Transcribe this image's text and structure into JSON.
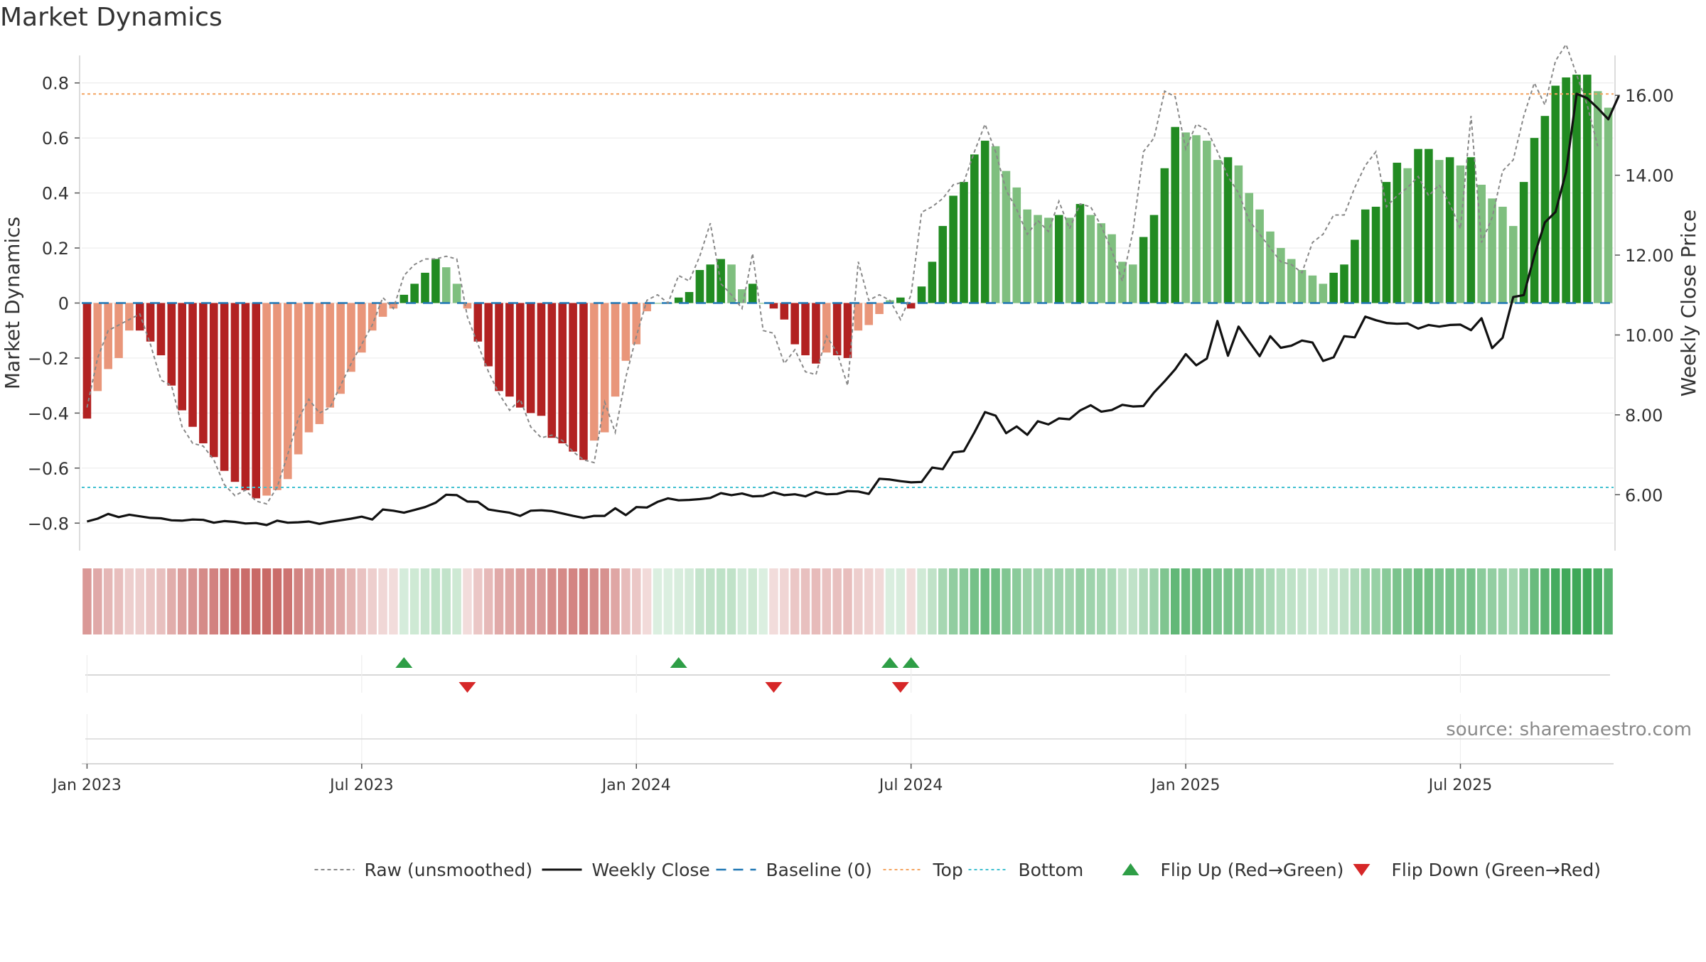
{
  "chart_data": {
    "title": "Market Dynamics",
    "type": "bar",
    "ylabel_left": "Market Dynamics",
    "ylabel_right": "Weekly Close Price",
    "ylim_left": [
      -0.9,
      0.9
    ],
    "ylim_right": [
      4.6,
      17.0
    ],
    "left_ticks": [
      -0.8,
      -0.6,
      -0.4,
      -0.2,
      0,
      0.2,
      0.4,
      0.6,
      0.8
    ],
    "left_tick_labels": [
      "−0.8",
      "−0.6",
      "−0.4",
      "−0.2",
      "0",
      "0.2",
      "0.4",
      "0.6",
      "0.8"
    ],
    "right_ticks": [
      6,
      8,
      10,
      12,
      14,
      16
    ],
    "right_tick_labels": [
      "6.00",
      "8.00",
      "10.00",
      "12.00",
      "14.00",
      "16.00"
    ],
    "x_tick_labels": [
      "Jan 2023",
      "Jul 2023",
      "Jan 2024",
      "Jul 2024",
      "Jan 2025",
      "Jul 2025"
    ],
    "x_tick_weeks": [
      1,
      27,
      53,
      79,
      105,
      131
    ],
    "top_level": 0.76,
    "bottom_level": -0.67,
    "baseline": 0,
    "bar_values": [
      -0.42,
      -0.32,
      -0.24,
      -0.2,
      -0.1,
      -0.1,
      -0.14,
      -0.19,
      -0.3,
      -0.39,
      -0.45,
      -0.51,
      -0.56,
      -0.61,
      -0.65,
      -0.68,
      -0.71,
      -0.7,
      -0.68,
      -0.64,
      -0.55,
      -0.47,
      -0.44,
      -0.38,
      -0.33,
      -0.25,
      -0.18,
      -0.1,
      -0.05,
      -0.02,
      0.03,
      0.07,
      0.11,
      0.16,
      0.13,
      0.07,
      -0.02,
      -0.14,
      -0.23,
      -0.32,
      -0.34,
      -0.38,
      -0.4,
      -0.41,
      -0.49,
      -0.51,
      -0.54,
      -0.57,
      -0.5,
      -0.47,
      -0.34,
      -0.21,
      -0.15,
      -0.03,
      0,
      0,
      0.02,
      0.04,
      0.12,
      0.14,
      0.16,
      0.14,
      0.05,
      0.07,
      0,
      -0.02,
      -0.06,
      -0.15,
      -0.19,
      -0.22,
      -0.18,
      -0.19,
      -0.2,
      -0.1,
      -0.08,
      -0.04,
      0.01,
      0.02,
      -0.02,
      0.06,
      0.15,
      0.28,
      0.39,
      0.44,
      0.54,
      0.59,
      0.57,
      0.48,
      0.42,
      0.34,
      0.32,
      0.31,
      0.32,
      0.31,
      0.36,
      0.32,
      0.29,
      0.25,
      0.15,
      0.14,
      0.24,
      0.32,
      0.49,
      0.64,
      0.62,
      0.61,
      0.59,
      0.52,
      0.53,
      0.5,
      0.4,
      0.34,
      0.26,
      0.2,
      0.16,
      0.12,
      0.1,
      0.07,
      0.11,
      0.14,
      0.23,
      0.34,
      0.35,
      0.44,
      0.51,
      0.49,
      0.56,
      0.56,
      0.52,
      0.53,
      0.5,
      0.53,
      0.43,
      0.38,
      0.35,
      0.28,
      0.44,
      0.6,
      0.68,
      0.79,
      0.82,
      0.83,
      0.83,
      0.77,
      0.71
    ],
    "raw_values": [
      -0.38,
      -0.2,
      -0.1,
      -0.08,
      -0.06,
      -0.04,
      -0.15,
      -0.28,
      -0.3,
      -0.45,
      -0.51,
      -0.52,
      -0.57,
      -0.66,
      -0.7,
      -0.68,
      -0.72,
      -0.73,
      -0.67,
      -0.55,
      -0.42,
      -0.35,
      -0.4,
      -0.38,
      -0.3,
      -0.22,
      -0.15,
      -0.08,
      0.02,
      -0.02,
      0.1,
      0.14,
      0.16,
      0.16,
      0.17,
      0.16,
      -0.05,
      -0.15,
      -0.25,
      -0.33,
      -0.39,
      -0.35,
      -0.45,
      -0.49,
      -0.48,
      -0.5,
      -0.54,
      -0.57,
      -0.58,
      -0.36,
      -0.47,
      -0.27,
      -0.12,
      0.01,
      0.03,
      0,
      0.1,
      0.08,
      0.17,
      0.29,
      0.07,
      0.03,
      -0.02,
      0.18,
      -0.1,
      -0.11,
      -0.22,
      -0.17,
      -0.25,
      -0.26,
      -0.12,
      -0.18,
      -0.3,
      0.15,
      0.01,
      0.03,
      0.01,
      -0.06,
      0.03,
      0.33,
      0.35,
      0.38,
      0.43,
      0.44,
      0.55,
      0.65,
      0.55,
      0.41,
      0.34,
      0.25,
      0.3,
      0.26,
      0.37,
      0.27,
      0.36,
      0.35,
      0.28,
      0.19,
      0.08,
      0.26,
      0.55,
      0.6,
      0.77,
      0.75,
      0.56,
      0.65,
      0.63,
      0.55,
      0.46,
      0.4,
      0.3,
      0.25,
      0.2,
      0.15,
      0.14,
      0.11,
      0.22,
      0.25,
      0.32,
      0.32,
      0.42,
      0.5,
      0.55,
      0.35,
      0.39,
      0.42,
      0.46,
      0.39,
      0.43,
      0.36,
      0.27,
      0.68,
      0.22,
      0.31,
      0.48,
      0.52,
      0.68,
      0.8,
      0.72,
      0.88,
      0.94,
      0.83,
      0.72,
      0.57
    ],
    "close_values": [
      5.33,
      5.4,
      5.52,
      5.44,
      5.5,
      5.46,
      5.42,
      5.41,
      5.36,
      5.35,
      5.38,
      5.37,
      5.3,
      5.34,
      5.32,
      5.28,
      5.29,
      5.24,
      5.35,
      5.3,
      5.31,
      5.33,
      5.27,
      5.32,
      5.36,
      5.4,
      5.45,
      5.38,
      5.63,
      5.6,
      5.55,
      5.62,
      5.69,
      5.8,
      6.0,
      5.99,
      5.83,
      5.82,
      5.63,
      5.59,
      5.55,
      5.47,
      5.6,
      5.61,
      5.59,
      5.53,
      5.47,
      5.42,
      5.47,
      5.47,
      5.66,
      5.49,
      5.69,
      5.68,
      5.82,
      5.91,
      5.86,
      5.87,
      5.89,
      5.92,
      6.04,
      5.99,
      6.03,
      5.96,
      5.97,
      6.06,
      5.99,
      6.01,
      5.96,
      6.07,
      6.01,
      6.02,
      6.09,
      6.08,
      6.02,
      6.4,
      6.38,
      6.34,
      6.31,
      6.32,
      6.68,
      6.64,
      7.06,
      7.09,
      7.56,
      8.07,
      7.98,
      7.54,
      7.71,
      7.5,
      7.84,
      7.76,
      7.91,
      7.89,
      8.11,
      8.24,
      8.08,
      8.12,
      8.25,
      8.21,
      8.22,
      8.56,
      8.84,
      9.14,
      9.52,
      9.24,
      9.41,
      10.35,
      9.48,
      10.21,
      9.83,
      9.47,
      9.97,
      9.68,
      9.73,
      9.86,
      9.81,
      9.35,
      9.44,
      9.97,
      9.94,
      10.46,
      10.37,
      10.3,
      10.28,
      10.29,
      10.16,
      10.25,
      10.21,
      10.25,
      10.26,
      10.12,
      10.42,
      9.67,
      9.93,
      10.95,
      11.0,
      11.99,
      12.82,
      13.08,
      14.08,
      16.04,
      15.93,
      15.68,
      15.4,
      15.99
    ]
  },
  "flip_up_weeks": [
    31,
    57,
    77,
    79
  ],
  "flip_down_weeks": [
    37,
    66,
    78
  ],
  "colors": {
    "dark_red": "#b22222",
    "light_red": "#e9967a",
    "dark_green": "#228b22",
    "light_green": "#7fbf7f",
    "raw": "#888888",
    "close": "#111111",
    "baseline": "#1f77b4",
    "top": "#f4a460",
    "bottom": "#40c0d0",
    "flip_up": "#2e9e46",
    "flip_down": "#d62728"
  },
  "legend": [
    {
      "label": "Raw (unsmoothed)",
      "kind": "raw"
    },
    {
      "label": "Weekly Close",
      "kind": "close"
    },
    {
      "label": "Baseline (0)",
      "kind": "baseline"
    },
    {
      "label": "Top",
      "kind": "top"
    },
    {
      "label": "Bottom",
      "kind": "bottom"
    },
    {
      "label": "Flip Up (Red→Green)",
      "kind": "flip_up"
    },
    {
      "label": "Flip Down (Green→Red)",
      "kind": "flip_down"
    }
  ],
  "source_text": "source: sharemaestro.com"
}
